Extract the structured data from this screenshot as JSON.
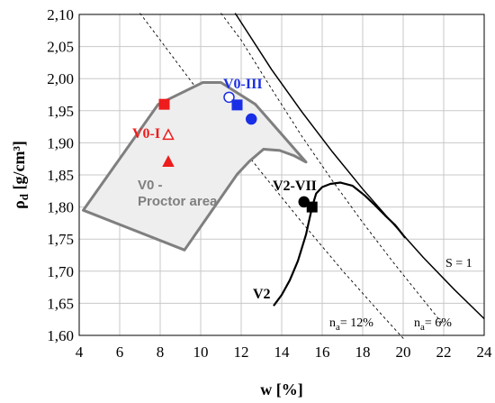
{
  "chart_data": {
    "type": "scatter",
    "xlabel": "w [%]",
    "ylabel": "ρd [g/cm³]",
    "xlim": [
      4,
      24
    ],
    "ylim": [
      1.6,
      2.1
    ],
    "x_ticks": [
      "4",
      "6",
      "8",
      "10",
      "12",
      "14",
      "16",
      "18",
      "20",
      "22",
      "24"
    ],
    "y_ticks": [
      "1,60",
      "1,65",
      "1,70",
      "1,75",
      "1,80",
      "1,85",
      "1,90",
      "1,95",
      "2,00",
      "2,05",
      "2,10"
    ],
    "grid": true,
    "colors": {
      "red": "#ee1c1c",
      "blue": "#1a2ee6",
      "black": "#000000",
      "gray": "#7f7f7f",
      "area_fill": "#eeeeee"
    },
    "lines": [
      {
        "label": "S = 1",
        "style": "solid",
        "color": "#000000",
        "x": [
          11.7,
          13.5,
          15.0,
          16.5,
          18.0,
          19.5,
          21.0,
          22.5,
          24.0
        ],
        "y": [
          2.102,
          2.014,
          1.948,
          1.886,
          1.828,
          1.774,
          1.721,
          1.672,
          1.626
        ]
      },
      {
        "label": "n_a = 6%",
        "style": "dashed",
        "color": "#000000",
        "x": [
          11.0,
          12.0,
          13.5,
          15.0,
          16.5,
          18.0,
          19.5,
          21.0,
          22.0
        ],
        "y": [
          2.102,
          2.06,
          1.984,
          1.91,
          1.841,
          1.776,
          1.714,
          1.655,
          1.616
        ]
      },
      {
        "label": "n_a = 12%",
        "style": "dashed",
        "color": "#000000",
        "x": [
          7.0,
          9.0,
          11.0,
          13.0,
          15.0,
          17.0,
          19.0,
          20.1
        ],
        "y": [
          2.102,
          2.018,
          1.934,
          1.854,
          1.776,
          1.701,
          1.63,
          1.592
        ]
      }
    ],
    "curves": [
      {
        "label": "V2",
        "color": "#000000",
        "x": [
          15.5,
          15.7,
          16.0,
          16.4,
          16.9,
          17.5,
          18.1,
          18.6,
          19.1,
          19.6,
          20.1
        ],
        "y": [
          1.8,
          1.821,
          1.831,
          1.836,
          1.838,
          1.833,
          1.818,
          1.803,
          1.787,
          1.772,
          1.752
        ]
      },
      {
        "label": "V2 dry branch",
        "color": "#000000",
        "x": [
          15.5,
          15.2,
          14.8,
          14.4,
          14.0,
          13.6
        ],
        "y": [
          1.8,
          1.757,
          1.716,
          1.686,
          1.663,
          1.646
        ]
      }
    ],
    "area": {
      "label_line1": "V0 -",
      "label_line2": "Proctor area",
      "x": [
        4.2,
        7.9,
        10.1,
        11.0,
        12.7,
        15.2,
        14.6,
        13.9,
        13.1,
        12.4,
        11.8,
        9.2,
        4.2
      ],
      "y": [
        1.795,
        1.96,
        1.994,
        1.994,
        1.96,
        1.87,
        1.88,
        1.888,
        1.89,
        1.871,
        1.851,
        1.733,
        1.795
      ]
    },
    "points": [
      {
        "series": "V0-I",
        "marker": "square-filled",
        "color": "#ee1c1c",
        "x": 8.2,
        "y": 1.96
      },
      {
        "series": "V0",
        "marker": "triangle-open",
        "color": "#ee1c1c",
        "x": 8.4,
        "y": 1.912
      },
      {
        "series": "V0",
        "marker": "triangle-filled",
        "color": "#ee1c1c",
        "x": 8.4,
        "y": 1.87
      },
      {
        "series": "V0-III",
        "marker": "circle-open",
        "color": "#1a2ee6",
        "x": 11.4,
        "y": 1.971
      },
      {
        "series": "V0-III",
        "marker": "square-filled",
        "color": "#1a2ee6",
        "x": 11.8,
        "y": 1.959
      },
      {
        "series": "V0-III",
        "marker": "circle-filled",
        "color": "#1a2ee6",
        "x": 12.5,
        "y": 1.937
      },
      {
        "series": "V2-VII",
        "marker": "circle-filled",
        "color": "#000000",
        "x": 15.1,
        "y": 1.808
      },
      {
        "series": "V2-VII",
        "marker": "square-filled",
        "color": "#000000",
        "x": 15.5,
        "y": 1.8
      }
    ],
    "annotations": {
      "v0_1": "V0-I",
      "v0_3": "V0-III",
      "v2_7": "V2-VII",
      "v2": "V2",
      "s1": "S = 1",
      "na12_prefix": "n",
      "na12_sub": "a",
      "na12_suffix": "= 12%",
      "na6_prefix": "n",
      "na6_sub": "a",
      "na6_suffix": "= 6%"
    }
  }
}
